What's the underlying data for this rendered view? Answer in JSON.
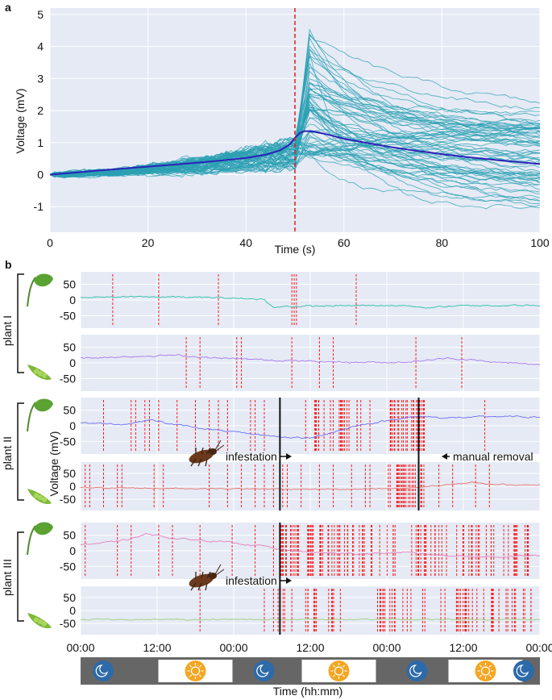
{
  "chart_data": [
    {
      "panel": "a",
      "type": "line",
      "xlabel": "Time (s)",
      "ylabel": "Voltage (mV)",
      "xlim": [
        0,
        100
      ],
      "ylim": [
        -1.8,
        5.2
      ],
      "xticks": [
        0,
        20,
        40,
        60,
        80,
        100
      ],
      "yticks": [
        -1,
        0,
        1,
        2,
        3,
        4,
        5
      ],
      "event_x": 50,
      "mean_series": {
        "x": [
          0,
          5,
          10,
          15,
          20,
          25,
          30,
          35,
          40,
          44,
          47,
          49,
          50,
          51,
          52,
          54,
          57,
          60,
          65,
          70,
          75,
          80,
          85,
          90,
          95,
          100
        ],
        "y": [
          0,
          0.06,
          0.13,
          0.19,
          0.25,
          0.31,
          0.37,
          0.44,
          0.52,
          0.62,
          0.76,
          0.95,
          1.15,
          1.3,
          1.36,
          1.34,
          1.24,
          1.12,
          0.98,
          0.85,
          0.74,
          0.64,
          0.55,
          0.47,
          0.4,
          0.33
        ]
      },
      "colors": {
        "traces": "#2ca0b3",
        "mean": "#2b22b8",
        "event": "#e41a1c",
        "background": "#e5eaf5"
      }
    },
    {
      "panel": "b",
      "type": "line",
      "xlabel": "Time (hh:mm)",
      "ylabel": "Voltage (mV)",
      "xticks": [
        "00:00",
        "12:00",
        "00:00",
        "12:00",
        "00:00",
        "12:00",
        "00:00"
      ],
      "yticks": [
        50,
        0,
        -50
      ],
      "plants": [
        "plant I",
        "plant II",
        "plant III"
      ],
      "annotations": {
        "infestation": "infestation",
        "removal": "manual  removal"
      },
      "infestation_fraction": {
        "plant II": 0.434,
        "plant III": 0.434
      },
      "removal_fraction": {
        "plant II": 0.736
      },
      "day_night": [
        "night",
        "day",
        "night",
        "day",
        "night",
        "day",
        "night"
      ],
      "traces": [
        {
          "plant": "plant I",
          "organ": "leaf",
          "color": "#2bbfa8",
          "x": [
            0,
            0.1,
            0.2,
            0.3,
            0.35,
            0.4,
            0.42,
            0.45,
            0.5,
            0.6,
            0.7,
            0.75,
            0.8,
            0.85,
            0.9,
            1.0
          ],
          "y": [
            10,
            10,
            10,
            7,
            5,
            2,
            -25,
            -20,
            -20,
            -18,
            -17,
            -25,
            -20,
            -18,
            -17,
            -18
          ]
        },
        {
          "plant": "plant I",
          "organ": "pod",
          "color": "#a678f0",
          "x": [
            0,
            0.1,
            0.2,
            0.3,
            0.4,
            0.5,
            0.6,
            0.7,
            0.75,
            0.8,
            0.85,
            0.9,
            1.0
          ],
          "y": [
            15,
            20,
            25,
            15,
            10,
            5,
            2,
            2,
            8,
            15,
            10,
            2,
            -5
          ]
        },
        {
          "plant": "plant II",
          "organ": "leaf",
          "color": "#6e6ef5",
          "x": [
            0,
            0.1,
            0.15,
            0.2,
            0.3,
            0.4,
            0.43,
            0.5,
            0.6,
            0.7,
            0.75,
            0.8,
            0.9,
            1.0
          ],
          "y": [
            10,
            5,
            20,
            5,
            -15,
            -30,
            -35,
            -40,
            0,
            25,
            30,
            25,
            30,
            28
          ]
        },
        {
          "plant": "plant II",
          "organ": "pod",
          "color": "#e8706a",
          "x": [
            0,
            0.2,
            0.4,
            0.6,
            0.7,
            0.8,
            0.85,
            0.9,
            1.0
          ],
          "y": [
            -5,
            -8,
            -10,
            -12,
            -8,
            5,
            15,
            8,
            5
          ]
        },
        {
          "plant": "plant III",
          "organ": "leaf",
          "color": "#e77fbb",
          "x": [
            0,
            0.05,
            0.1,
            0.15,
            0.2,
            0.3,
            0.4,
            0.43,
            0.5,
            0.6,
            0.7,
            0.8,
            0.9,
            1.0
          ],
          "y": [
            20,
            25,
            35,
            55,
            40,
            30,
            15,
            5,
            -5,
            -10,
            -5,
            -15,
            -20,
            -15
          ]
        },
        {
          "plant": "plant III",
          "organ": "pod",
          "color": "#9ad07a",
          "x": [
            0,
            0.2,
            0.4,
            0.6,
            0.8,
            1.0
          ],
          "y": [
            -35,
            -35,
            -35,
            -35,
            -35,
            -35
          ]
        }
      ]
    }
  ],
  "labels": {
    "panel_a": "a",
    "panel_b": "b"
  },
  "icons": {
    "leaf": "leaf-icon",
    "pod": "pea-pod-icon",
    "bug": "stink-bug-icon",
    "moon": "moon-icon",
    "sun": "sun-icon"
  }
}
